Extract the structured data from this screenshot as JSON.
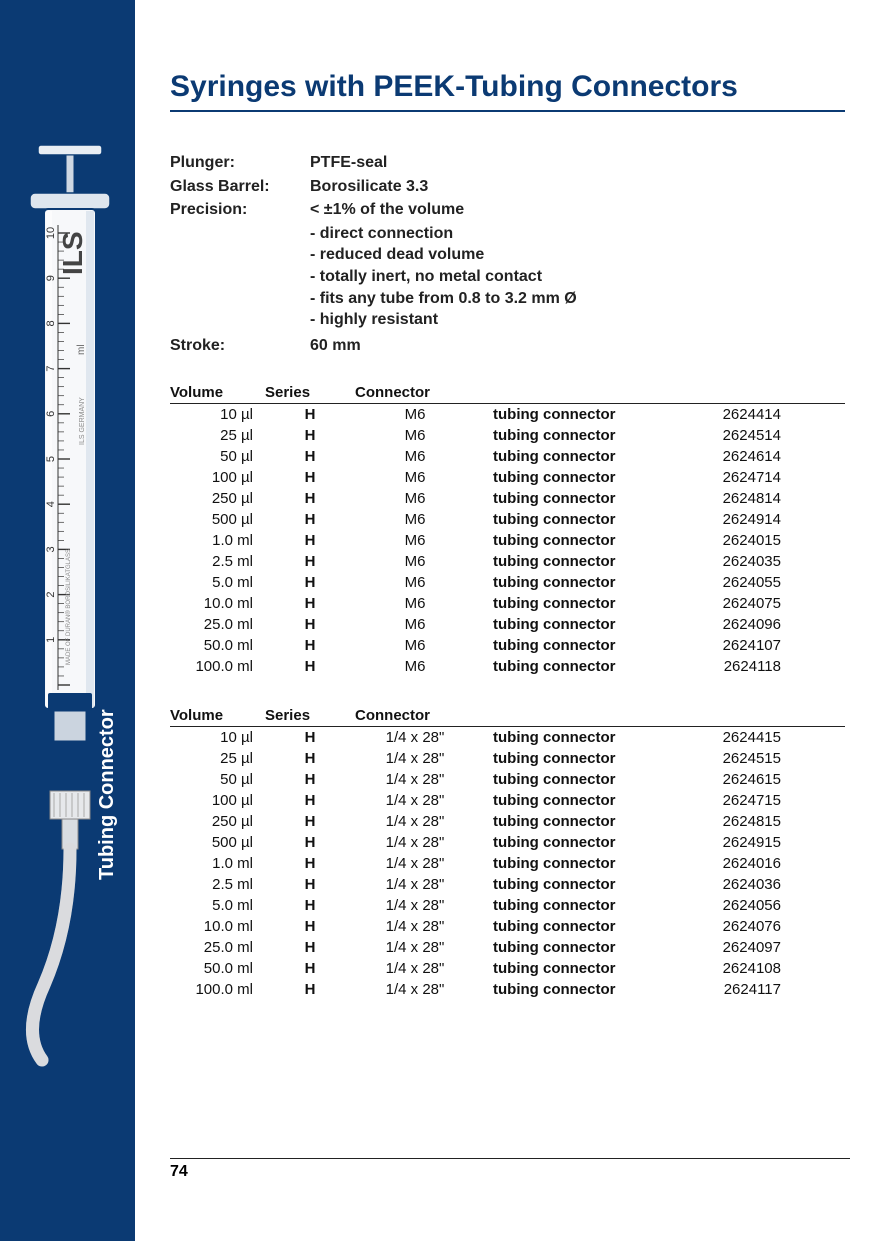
{
  "title": "Syringes with PEEK-Tubing Connectors",
  "side_label": "Tubing Connector",
  "page_number": "74",
  "specs": {
    "plunger_label": "Plunger:",
    "plunger_val": "PTFE-seal",
    "barrel_label": "Glass Barrel:",
    "barrel_val": "Borosilicate 3.3",
    "precision_label": "Precision:",
    "precision_val": "< ±1% of the volume",
    "stroke_label": "Stroke:",
    "stroke_val": "60 mm"
  },
  "features": [
    "- direct connection",
    "- reduced dead volume",
    "- totally inert, no metal contact",
    "- fits any tube from 0.8 to 3.2 mm Ø",
    "- highly resistant"
  ],
  "headers": {
    "volume": "Volume",
    "series": "Series",
    "connector": "Connector"
  },
  "table1": {
    "connector": "M6",
    "rows": [
      {
        "vol": "10 µl",
        "ser": "H",
        "desc": "tubing connector",
        "code": "2624414"
      },
      {
        "vol": "25 µl",
        "ser": "H",
        "desc": "tubing connector",
        "code": "2624514"
      },
      {
        "vol": "50 µl",
        "ser": "H",
        "desc": "tubing connector",
        "code": "2624614"
      },
      {
        "vol": "100 µl",
        "ser": "H",
        "desc": "tubing connector",
        "code": "2624714"
      },
      {
        "vol": "250 µl",
        "ser": "H",
        "desc": "tubing connector",
        "code": "2624814"
      },
      {
        "vol": "500 µl",
        "ser": "H",
        "desc": "tubing connector",
        "code": "2624914"
      },
      {
        "vol": "1.0 ml",
        "ser": "H",
        "desc": "tubing connector",
        "code": "2624015"
      },
      {
        "vol": "2.5 ml",
        "ser": "H",
        "desc": "tubing connector",
        "code": "2624035"
      },
      {
        "vol": "5.0 ml",
        "ser": "H",
        "desc": "tubing connector",
        "code": "2624055"
      },
      {
        "vol": "10.0 ml",
        "ser": "H",
        "desc": "tubing connector",
        "code": "2624075"
      },
      {
        "vol": "25.0 ml",
        "ser": "H",
        "desc": "tubing connector",
        "code": "2624096"
      },
      {
        "vol": "50.0 ml",
        "ser": "H",
        "desc": "tubing connector",
        "code": "2624107"
      },
      {
        "vol": "100.0 ml",
        "ser": "H",
        "desc": "tubing connector",
        "code": "2624118"
      }
    ]
  },
  "table2": {
    "connector": "1/4 x 28\"",
    "rows": [
      {
        "vol": "10 µl",
        "ser": "H",
        "desc": "tubing connector",
        "code": "2624415"
      },
      {
        "vol": "25 µl",
        "ser": "H",
        "desc": "tubing connector",
        "code": "2624515"
      },
      {
        "vol": "50 µl",
        "ser": "H",
        "desc": "tubing connector",
        "code": "2624615"
      },
      {
        "vol": "100 µl",
        "ser": "H",
        "desc": "tubing connector",
        "code": "2624715"
      },
      {
        "vol": "250 µl",
        "ser": "H",
        "desc": "tubing connector",
        "code": "2624815"
      },
      {
        "vol": "500 µl",
        "ser": "H",
        "desc": "tubing connector",
        "code": "2624915"
      },
      {
        "vol": "1.0 ml",
        "ser": "H",
        "desc": "tubing connector",
        "code": "2624016"
      },
      {
        "vol": "2.5 ml",
        "ser": "H",
        "desc": "tubing connector",
        "code": "2624036"
      },
      {
        "vol": "5.0 ml",
        "ser": "H",
        "desc": "tubing connector",
        "code": "2624056"
      },
      {
        "vol": "10.0 ml",
        "ser": "H",
        "desc": "tubing connector",
        "code": "2624076"
      },
      {
        "vol": "25.0 ml",
        "ser": "H",
        "desc": "tubing connector",
        "code": "2624097"
      },
      {
        "vol": "50.0 ml",
        "ser": "H",
        "desc": "tubing connector",
        "code": "2624108"
      },
      {
        "vol": "100.0 ml",
        "ser": "H",
        "desc": "tubing connector",
        "code": "2624117"
      }
    ]
  },
  "syringe": {
    "scale_labels": [
      "1",
      "2",
      "3",
      "4",
      "5",
      "6",
      "7",
      "8",
      "9",
      "10"
    ],
    "brand": "ILS",
    "unit": "ml",
    "side_text": "MADE OF DURAN® BOROSILIKATGLASS",
    "country": "ILS GERMANY"
  }
}
